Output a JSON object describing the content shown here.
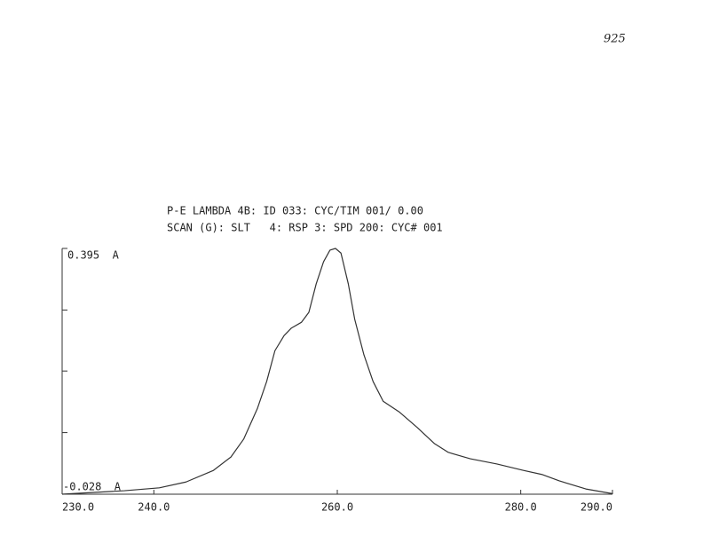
{
  "chart_data": {
    "type": "line",
    "annotation": "925",
    "title": "P-E LAMBDA 4B: ID 033: CYC/TIM 001/ 0.00",
    "subtitle": "SCAN (G): SLT   4: RSP 3: SPD 200: CYC# 001",
    "x": [
      230.0,
      236.8,
      240.6,
      243.5,
      246.5,
      248.4,
      249.8,
      251.3,
      252.3,
      253.2,
      254.2,
      255.0,
      256.1,
      256.9,
      257.7,
      258.5,
      259.2,
      259.8,
      260.4,
      261.2,
      261.9,
      262.9,
      263.9,
      265.0,
      266.8,
      268.7,
      270.6,
      272.1,
      274.5,
      277.4,
      280.3,
      282.3,
      284.2,
      287.1,
      290.0
    ],
    "series": [
      {
        "color": "#333333",
        "values": [
          -0.028,
          -0.022,
          -0.017,
          -0.007,
          0.013,
          0.036,
          0.067,
          0.12,
          0.166,
          0.219,
          0.245,
          0.258,
          0.268,
          0.285,
          0.334,
          0.372,
          0.392,
          0.395,
          0.387,
          0.334,
          0.273,
          0.212,
          0.166,
          0.132,
          0.113,
          0.087,
          0.059,
          0.044,
          0.033,
          0.024,
          0.013,
          0.006,
          -0.005,
          -0.019,
          -0.027
        ]
      }
    ],
    "xlim": [
      230.0,
      290.0
    ],
    "xticks": [
      {
        "value": 230,
        "label": "230.0"
      },
      {
        "value": 240,
        "label": "240.0"
      },
      {
        "value": 260,
        "label": "260.0"
      },
      {
        "value": 280,
        "label": "280.0"
      },
      {
        "value": 290,
        "label": "290.0"
      }
    ],
    "ylim": [
      -0.028,
      0.395
    ],
    "yticks": [
      {
        "value": -0.028,
        "label": "-0.028  A"
      },
      {
        "value": 0.395,
        "label": "0.395  A"
      }
    ],
    "yminor_ticks": [
      0.078,
      0.184,
      0.289
    ],
    "grid": false
  }
}
